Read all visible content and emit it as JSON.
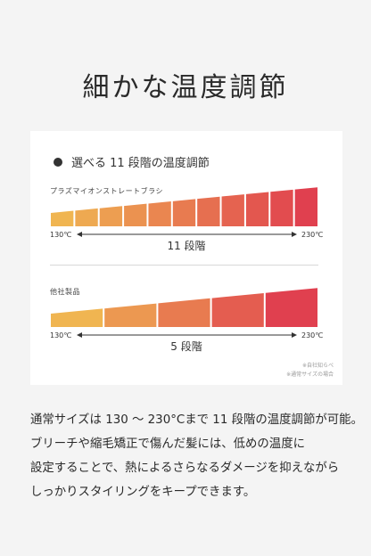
{
  "title": "細かな温度調節",
  "card": {
    "heading": "選べる 11 段階の温度調節",
    "product1": {
      "name": "プラズマイオンストレートブラシ",
      "min": "130℃",
      "max": "230℃",
      "steps_label": "11 段階",
      "steps": 11
    },
    "product2": {
      "name": "他社製品",
      "min": "130℃",
      "max": "230℃",
      "steps_label": "5 段階",
      "steps": 5
    },
    "note1": "※自社知らべ",
    "note2": "※通常サイズの場合"
  },
  "description": [
    "通常サイズは 130 〜 230°Cまで 11 段階の温度調節が可能。",
    "ブリーチや縮毛矯正で傷んだ髪には、低めの温度に",
    "設定することで、熱によるさらなるダメージを抑えながら",
    "しっかりスタイリングをキープできます。"
  ],
  "colors": {
    "gradient_start": "#f0b551",
    "gradient_end": "#e0404f"
  }
}
